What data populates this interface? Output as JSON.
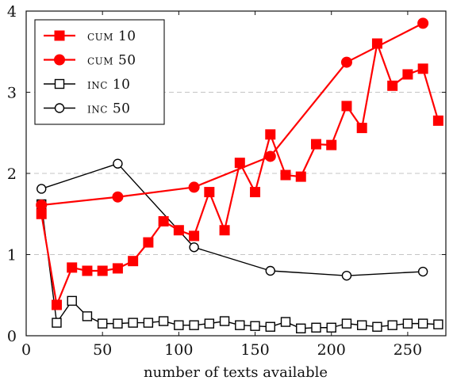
{
  "chart_data": {
    "type": "line",
    "xlabel": "number of texts available",
    "ylabel": "",
    "xlim": [
      0,
      275
    ],
    "ylim": [
      0,
      4
    ],
    "xticks": [
      0,
      50,
      100,
      150,
      200,
      250
    ],
    "yticks": [
      0,
      1,
      2,
      3,
      4
    ],
    "grid": "horizontal dashed",
    "legend_position": "top-left",
    "series": [
      {
        "name": "cum 10",
        "color": "#ff0000",
        "marker": "square-filled",
        "x": [
          10,
          20,
          30,
          40,
          50,
          60,
          70,
          80,
          90,
          100,
          110,
          120,
          130,
          140,
          150,
          160,
          170,
          180,
          190,
          200,
          210,
          220,
          230,
          240,
          250,
          260,
          270
        ],
        "values": [
          1.5,
          0.38,
          0.84,
          0.8,
          0.8,
          0.83,
          0.92,
          1.15,
          1.41,
          1.3,
          1.23,
          1.77,
          1.3,
          2.13,
          1.77,
          2.48,
          1.98,
          1.96,
          2.36,
          2.35,
          2.83,
          2.56,
          3.6,
          3.08,
          3.22,
          3.29,
          2.65
        ]
      },
      {
        "name": "cum 50",
        "color": "#ff0000",
        "marker": "circle-filled",
        "x": [
          10,
          60,
          110,
          160,
          210,
          260
        ],
        "values": [
          1.61,
          1.71,
          1.83,
          2.21,
          3.37,
          3.85
        ]
      },
      {
        "name": "inc 10",
        "color": "#000000",
        "marker": "square-open",
        "x": [
          10,
          20,
          30,
          40,
          50,
          60,
          70,
          80,
          90,
          100,
          110,
          120,
          130,
          140,
          150,
          160,
          170,
          180,
          190,
          200,
          210,
          220,
          230,
          240,
          250,
          260,
          270
        ],
        "values": [
          1.62,
          0.16,
          0.43,
          0.24,
          0.15,
          0.15,
          0.16,
          0.16,
          0.18,
          0.13,
          0.13,
          0.15,
          0.18,
          0.13,
          0.12,
          0.11,
          0.17,
          0.09,
          0.1,
          0.1,
          0.15,
          0.13,
          0.11,
          0.13,
          0.15,
          0.15,
          0.14
        ]
      },
      {
        "name": "inc 50",
        "color": "#000000",
        "marker": "circle-open",
        "x": [
          10,
          60,
          110,
          160,
          210,
          260
        ],
        "values": [
          1.81,
          2.12,
          1.09,
          0.8,
          0.74,
          0.79
        ]
      }
    ]
  }
}
